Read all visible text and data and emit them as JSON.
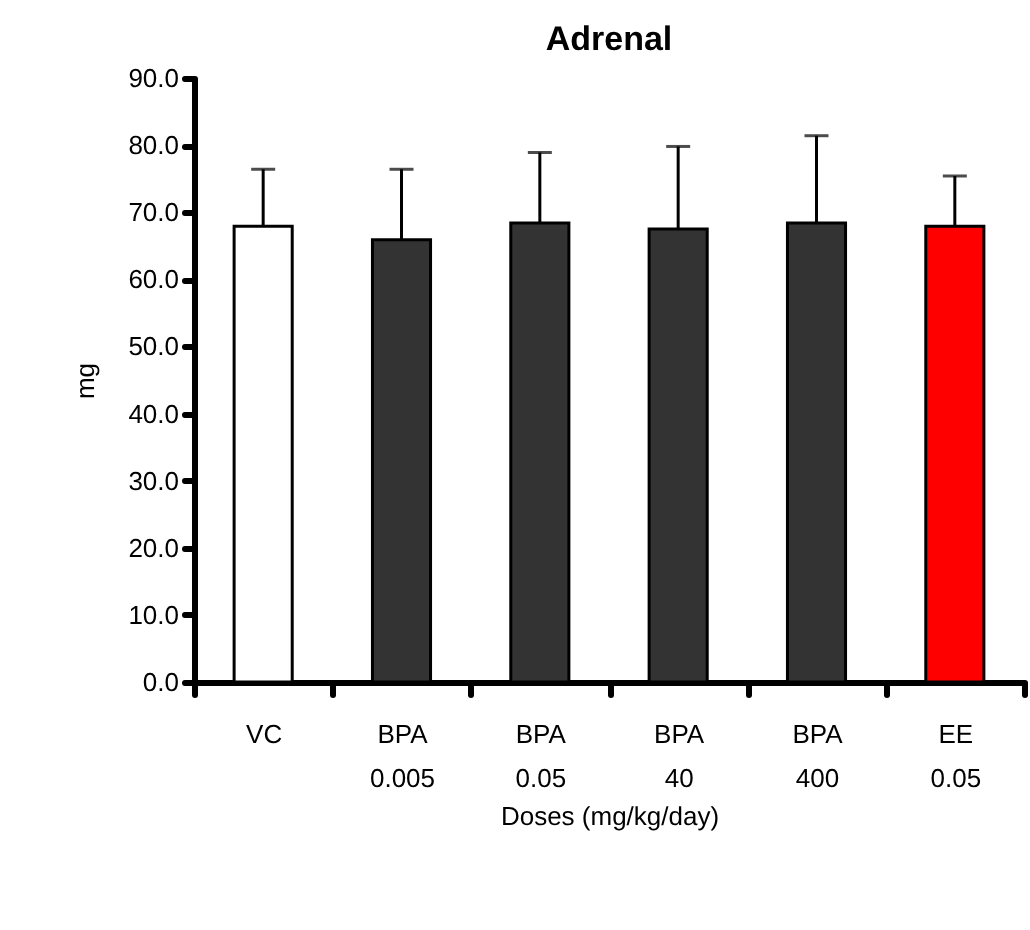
{
  "chart_data": {
    "type": "bar",
    "title": "Adrenal",
    "xlabel": "Doses (mg/kg/day)",
    "ylabel": "mg",
    "categories": [
      "VC",
      "BPA\n0.005",
      "BPA\n0.05",
      "BPA\n40",
      "BPA\n400",
      "EE\n0.05"
    ],
    "values": [
      67.9,
      65.9,
      68.4,
      67.5,
      68.4,
      67.9
    ],
    "errors": [
      [
        67.9,
        76.4
      ],
      [
        65.9,
        76.4
      ],
      [
        68.4,
        78.9
      ],
      [
        67.5,
        79.8
      ],
      [
        68.4,
        81.4
      ],
      [
        67.9,
        75.4
      ]
    ],
    "colors": [
      "#ffffff",
      "#333333",
      "#333333",
      "#333333",
      "#333333",
      "#ff0000"
    ],
    "ylim": [
      0,
      90
    ],
    "yticks": [
      {
        "value": 0,
        "label": "0.0"
      },
      {
        "value": 10,
        "label": "10.0"
      },
      {
        "value": 20,
        "label": "20.0"
      },
      {
        "value": 30,
        "label": "30.0"
      },
      {
        "value": 40,
        "label": "40.0"
      },
      {
        "value": 50,
        "label": "50.0"
      },
      {
        "value": 60,
        "label": "60.0"
      },
      {
        "value": 70,
        "label": "70.0"
      },
      {
        "value": 80,
        "label": "80.0"
      },
      {
        "value": 90,
        "label": "90.0"
      }
    ],
    "grid": false
  }
}
